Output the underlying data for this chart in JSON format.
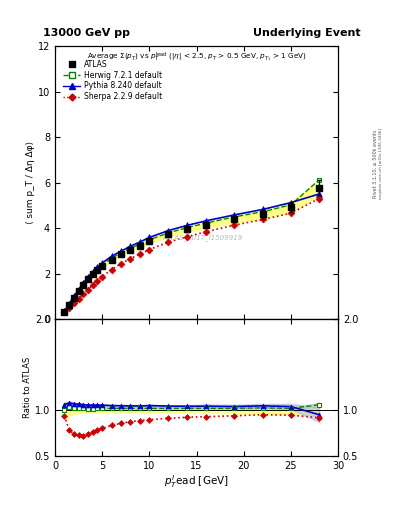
{
  "title_left": "13000 GeV pp",
  "title_right": "Underlying Event",
  "ylabel_main": "⟨ sum p_T / Δη Δφ⟩",
  "ylabel_ratio": "Ratio to ATLAS",
  "xlabel": "p$_T^l$ead [GeV]",
  "watermark": "ATLAS_2017_I1509919",
  "rivet_label": "Rivet 3.1.10, ≥ 500k events",
  "mcplots_label": "mcplots.cern.ch [arXiv:1306.3436]",
  "atlas_x": [
    1.0,
    1.5,
    2.0,
    2.5,
    3.0,
    3.5,
    4.0,
    4.5,
    5.0,
    6.0,
    7.0,
    8.0,
    9.0,
    10.0,
    12.0,
    14.0,
    16.0,
    19.0,
    22.0,
    25.0,
    28.0
  ],
  "atlas_y": [
    0.32,
    0.62,
    0.93,
    1.22,
    1.5,
    1.75,
    1.98,
    2.17,
    2.34,
    2.62,
    2.85,
    3.05,
    3.23,
    3.42,
    3.72,
    3.95,
    4.14,
    4.4,
    4.6,
    4.92,
    5.78
  ],
  "atlas_yerr": [
    0.03,
    0.04,
    0.04,
    0.04,
    0.04,
    0.05,
    0.05,
    0.05,
    0.06,
    0.06,
    0.07,
    0.07,
    0.08,
    0.09,
    0.1,
    0.11,
    0.12,
    0.15,
    0.18,
    0.22,
    0.32
  ],
  "herwig_x": [
    1.0,
    1.5,
    2.0,
    2.5,
    3.0,
    3.5,
    4.0,
    4.5,
    5.0,
    6.0,
    7.0,
    8.0,
    9.0,
    10.0,
    12.0,
    14.0,
    16.0,
    19.0,
    22.0,
    25.0,
    28.0
  ],
  "herwig_y": [
    0.32,
    0.64,
    0.95,
    1.25,
    1.53,
    1.78,
    2.01,
    2.21,
    2.39,
    2.68,
    2.91,
    3.11,
    3.3,
    3.49,
    3.79,
    4.02,
    4.22,
    4.49,
    4.72,
    5.02,
    6.12
  ],
  "pythia_x": [
    1.0,
    1.5,
    2.0,
    2.5,
    3.0,
    3.5,
    4.0,
    4.5,
    5.0,
    6.0,
    7.0,
    8.0,
    9.0,
    10.0,
    12.0,
    14.0,
    16.0,
    19.0,
    22.0,
    25.0,
    28.0
  ],
  "pythia_y": [
    0.34,
    0.67,
    1.0,
    1.3,
    1.59,
    1.85,
    2.09,
    2.29,
    2.47,
    2.76,
    2.99,
    3.2,
    3.39,
    3.59,
    3.89,
    4.12,
    4.32,
    4.58,
    4.82,
    5.12,
    5.5
  ],
  "sherpa_x": [
    1.0,
    1.5,
    2.0,
    2.5,
    3.0,
    3.5,
    4.0,
    4.5,
    5.0,
    6.0,
    7.0,
    8.0,
    9.0,
    10.0,
    12.0,
    14.0,
    16.0,
    19.0,
    22.0,
    25.0,
    28.0
  ],
  "sherpa_y": [
    0.3,
    0.48,
    0.69,
    0.89,
    1.09,
    1.3,
    1.51,
    1.69,
    1.87,
    2.18,
    2.44,
    2.66,
    2.86,
    3.06,
    3.38,
    3.62,
    3.84,
    4.13,
    4.38,
    4.65,
    5.3
  ],
  "atlas_color": "#000000",
  "herwig_color": "#008800",
  "pythia_color": "#0000cc",
  "sherpa_color": "#cc0000",
  "ylim_main": [
    0,
    12
  ],
  "ylim_ratio": [
    0.5,
    2.0
  ],
  "xlim": [
    0,
    30
  ],
  "atlas_band_color": "#ffff88",
  "herwig_band_color": "#aaddaa",
  "pythia_band_color": "#aaaaee",
  "ratio_herwig_y": [
    1.0,
    1.03,
    1.02,
    1.02,
    1.02,
    1.01,
    1.01,
    1.02,
    1.02,
    1.02,
    1.02,
    1.02,
    1.02,
    1.02,
    1.02,
    1.02,
    1.02,
    1.02,
    1.025,
    1.02,
    1.06
  ],
  "ratio_herwig_err": [
    0.01,
    0.01,
    0.01,
    0.01,
    0.01,
    0.01,
    0.01,
    0.01,
    0.01,
    0.01,
    0.01,
    0.01,
    0.01,
    0.01,
    0.01,
    0.01,
    0.01,
    0.01,
    0.01,
    0.01,
    0.02
  ],
  "ratio_pythia_y": [
    1.06,
    1.08,
    1.07,
    1.065,
    1.06,
    1.055,
    1.055,
    1.055,
    1.055,
    1.05,
    1.048,
    1.047,
    1.046,
    1.05,
    1.045,
    1.043,
    1.044,
    1.04,
    1.048,
    1.04,
    0.95
  ],
  "ratio_pythia_err": [
    0.02,
    0.015,
    0.012,
    0.01,
    0.01,
    0.01,
    0.01,
    0.01,
    0.01,
    0.01,
    0.01,
    0.01,
    0.01,
    0.01,
    0.01,
    0.01,
    0.02,
    0.02,
    0.02,
    0.03,
    0.08
  ],
  "ratio_sherpa_y": [
    0.94,
    0.78,
    0.74,
    0.73,
    0.72,
    0.74,
    0.76,
    0.78,
    0.8,
    0.832,
    0.856,
    0.873,
    0.886,
    0.896,
    0.91,
    0.922,
    0.929,
    0.938,
    0.95,
    0.945,
    0.917
  ],
  "ratio_sherpa_err": [
    0.02,
    0.02,
    0.015,
    0.01,
    0.01,
    0.01,
    0.01,
    0.01,
    0.01,
    0.01,
    0.01,
    0.01,
    0.01,
    0.01,
    0.01,
    0.015,
    0.015,
    0.02,
    0.02,
    0.025,
    0.08
  ]
}
